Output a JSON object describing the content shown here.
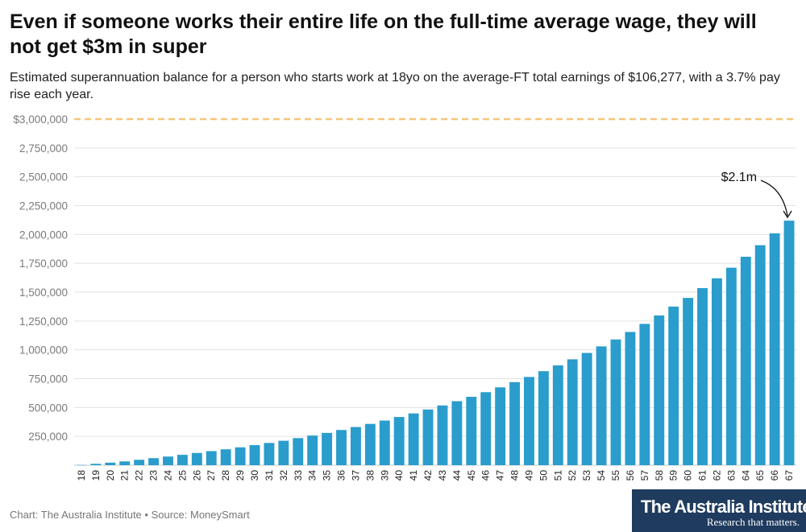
{
  "title": "Even if someone works their entire life on the full-time average wage, they will not get $3m in super",
  "subtitle": "Estimated superannuation balance for a person who starts work at 18yo on the average-FT total earnings of $106,277, with a 3.7% pay rise each year.",
  "footer": {
    "chart_credit": "Chart: The Australia Institute",
    "separator": " • ",
    "source": "Source: MoneySmart"
  },
  "logo": {
    "name": "The Australia Institute",
    "tagline": "Research that matters."
  },
  "colors": {
    "bar": "#2a9dcc",
    "reference_line": "#f5c67a",
    "gridline": "#e2e2e2",
    "tick_label": "#7a7a7a",
    "logo_background": "#1f3b5e"
  },
  "chart_data": {
    "type": "bar",
    "xlabel": "",
    "ylabel": "",
    "ylim": [
      0,
      3000000
    ],
    "yticks": [
      {
        "value": 0,
        "label": ""
      },
      {
        "value": 250000,
        "label": "250,000"
      },
      {
        "value": 500000,
        "label": "500,000"
      },
      {
        "value": 750000,
        "label": "750,000"
      },
      {
        "value": 1000000,
        "label": "1,000,000"
      },
      {
        "value": 1250000,
        "label": "1,250,000"
      },
      {
        "value": 1500000,
        "label": "1,500,000"
      },
      {
        "value": 1750000,
        "label": "1,750,000"
      },
      {
        "value": 2000000,
        "label": "2,000,000"
      },
      {
        "value": 2250000,
        "label": "2,250,000"
      },
      {
        "value": 2500000,
        "label": "2,500,000"
      },
      {
        "value": 2750000,
        "label": "2,750,000"
      },
      {
        "value": 3000000,
        "label": "$3,000,000"
      }
    ],
    "grid": true,
    "categories": [
      "18",
      "19",
      "20",
      "21",
      "22",
      "23",
      "24",
      "25",
      "26",
      "27",
      "28",
      "29",
      "30",
      "31",
      "32",
      "33",
      "34",
      "35",
      "36",
      "37",
      "38",
      "39",
      "40",
      "41",
      "42",
      "43",
      "44",
      "45",
      "46",
      "47",
      "48",
      "49",
      "50",
      "51",
      "52",
      "53",
      "54",
      "55",
      "56",
      "57",
      "58",
      "59",
      "60",
      "61",
      "62",
      "63",
      "64",
      "65",
      "66",
      "67"
    ],
    "values": [
      2000,
      12000,
      22000,
      33000,
      47000,
      61000,
      75000,
      90000,
      106000,
      122000,
      138000,
      155000,
      174000,
      193000,
      212000,
      235000,
      257000,
      280000,
      305000,
      331000,
      358000,
      387000,
      418000,
      449000,
      483000,
      518000,
      555000,
      593000,
      633000,
      675000,
      720000,
      765000,
      815000,
      865000,
      918000,
      973000,
      1030000,
      1090000,
      1155000,
      1225000,
      1298000,
      1375000,
      1450000,
      1535000,
      1620000,
      1712000,
      1807000,
      1907000,
      2010000,
      2120000
    ],
    "reference_line": {
      "value": 3000000,
      "style": "dashed"
    },
    "annotations": [
      {
        "text": "$2.1m",
        "target_category": "67"
      }
    ]
  }
}
